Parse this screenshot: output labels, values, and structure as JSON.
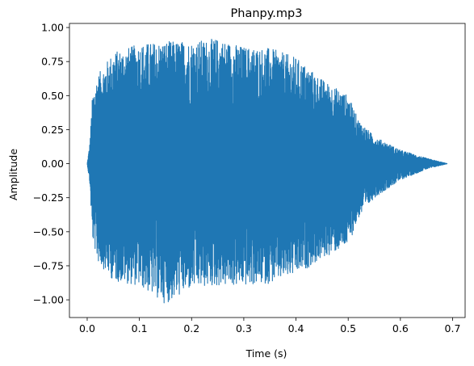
{
  "chart_data": {
    "type": "line",
    "title": "Phanpy.mp3",
    "xlabel": "Time (s)",
    "ylabel": "Amplitude",
    "xlim": [
      -0.034,
      0.724
    ],
    "ylim": [
      -1.13,
      1.03
    ],
    "grid": false,
    "legend": "none",
    "x_ticks": [
      0.0,
      0.1,
      0.2,
      0.3,
      0.4,
      0.5,
      0.6,
      0.7
    ],
    "x_tick_labels": [
      "0.0",
      "0.1",
      "0.2",
      "0.3",
      "0.4",
      "0.5",
      "0.6",
      "0.7"
    ],
    "y_ticks": [
      -1.0,
      -0.75,
      -0.5,
      -0.25,
      0.0,
      0.25,
      0.5,
      0.75,
      1.0
    ],
    "y_tick_labels": [
      "−1.00",
      "−0.75",
      "−0.50",
      "−0.25",
      "0.00",
      "0.25",
      "0.50",
      "0.75",
      "1.00"
    ],
    "line_color": "#1f77b4",
    "series": [
      {
        "duration": 0.69,
        "envelope": {
          "t": [
            0.0,
            0.005,
            0.01,
            0.02,
            0.05,
            0.1,
            0.15,
            0.2,
            0.25,
            0.3,
            0.35,
            0.4,
            0.45,
            0.5,
            0.52,
            0.55,
            0.6,
            0.65,
            0.69
          ],
          "pos": [
            0.0,
            0.15,
            0.5,
            0.65,
            0.82,
            0.88,
            0.9,
            0.9,
            0.92,
            0.86,
            0.85,
            0.78,
            0.62,
            0.5,
            0.32,
            0.2,
            0.1,
            0.04,
            0.0
          ],
          "neg": [
            0.0,
            -0.15,
            -0.55,
            -0.72,
            -0.86,
            -0.9,
            -1.03,
            -0.92,
            -0.9,
            -0.9,
            -0.88,
            -0.82,
            -0.7,
            -0.6,
            -0.4,
            -0.25,
            -0.12,
            -0.04,
            0.0
          ]
        }
      }
    ]
  }
}
